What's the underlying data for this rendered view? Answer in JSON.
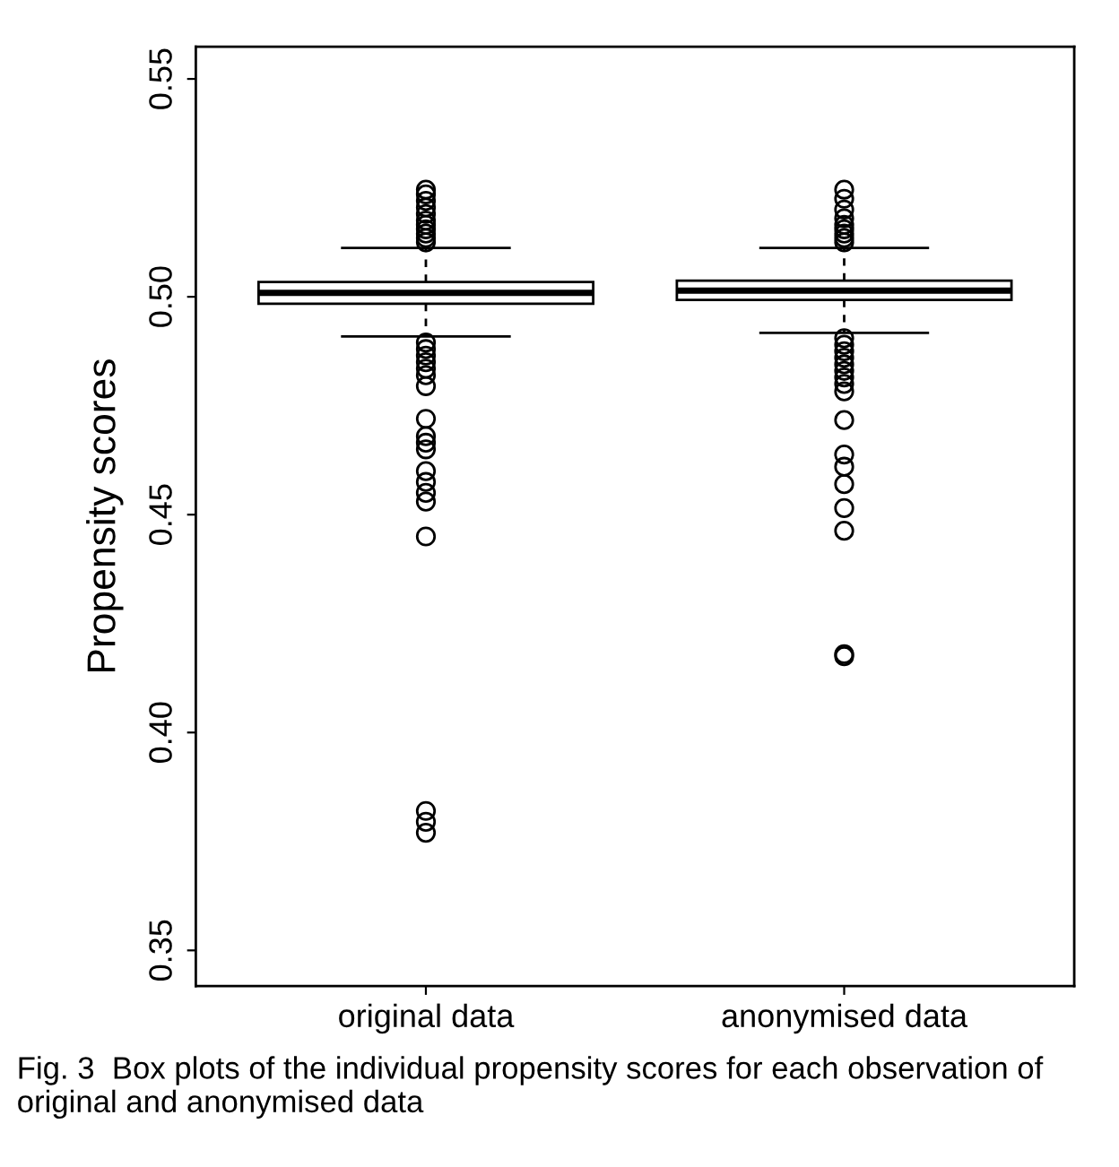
{
  "chart_data": {
    "type": "box",
    "ylabel": "Propensity scores",
    "categories": [
      "original data",
      "anonymised data"
    ],
    "boxes": [
      {
        "low": 0.4909,
        "q1": 0.4984,
        "median": 0.5009,
        "q3": 0.5034,
        "high": 0.5112,
        "outliers": [
          0.5125,
          0.5135,
          0.5145,
          0.5155,
          0.5165,
          0.5175,
          0.519,
          0.5205,
          0.522,
          0.5235,
          0.5246,
          0.4895,
          0.488,
          0.4865,
          0.485,
          0.4835,
          0.482,
          0.4795,
          0.472,
          0.468,
          0.4665,
          0.465,
          0.46,
          0.4575,
          0.455,
          0.453,
          0.445,
          0.382,
          0.3795,
          0.377
        ]
      },
      {
        "low": 0.4917,
        "q1": 0.4993,
        "median": 0.5014,
        "q3": 0.5037,
        "high": 0.5112,
        "outliers": [
          0.5125,
          0.5135,
          0.5145,
          0.5155,
          0.5165,
          0.518,
          0.52,
          0.5225,
          0.5246,
          0.4905,
          0.489,
          0.4875,
          0.486,
          0.4845,
          0.483,
          0.4815,
          0.48,
          0.4783,
          0.4717,
          0.4638,
          0.461,
          0.457,
          0.4515,
          0.4463,
          0.418,
          0.4175
        ]
      }
    ],
    "ylim": [
      0.3418,
      0.5574
    ],
    "yticks": [
      {
        "value": 0.35,
        "label": "0.35"
      },
      {
        "value": 0.4,
        "label": "0.40"
      },
      {
        "value": 0.45,
        "label": "0.45"
      },
      {
        "value": 0.5,
        "label": "0.50"
      },
      {
        "value": 0.55,
        "label": "0.55"
      }
    ],
    "grid": false,
    "annotations": [
      "Fig. 3  Box plots of the individual propensity scores for each observation of original and anonymised data"
    ]
  }
}
